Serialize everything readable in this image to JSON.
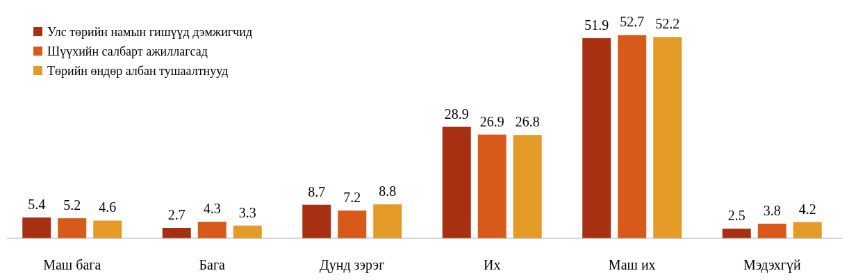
{
  "chart_data": {
    "type": "bar",
    "categories": [
      "Маш бага",
      "Бага",
      "Дунд зэрэг",
      "Их",
      "Маш их",
      "Мэдэхгүй"
    ],
    "series": [
      {
        "name": "Улс төрийн намын гишүүд дэмжигчид",
        "color": "#a63011",
        "values": [
          5.4,
          2.7,
          8.7,
          28.9,
          51.9,
          2.5
        ]
      },
      {
        "name": "Шүүхийн салбарт ажиллагсад",
        "color": "#d75a1a",
        "values": [
          5.2,
          4.3,
          7.2,
          26.9,
          52.7,
          3.8
        ]
      },
      {
        "name": "Төрийн өндөр албан тушаалтнууд",
        "color": "#e39a27",
        "values": [
          4.6,
          3.3,
          8.8,
          26.8,
          52.2,
          4.2
        ]
      }
    ],
    "data_labels": true,
    "legend": "top left",
    "grid": false
  }
}
